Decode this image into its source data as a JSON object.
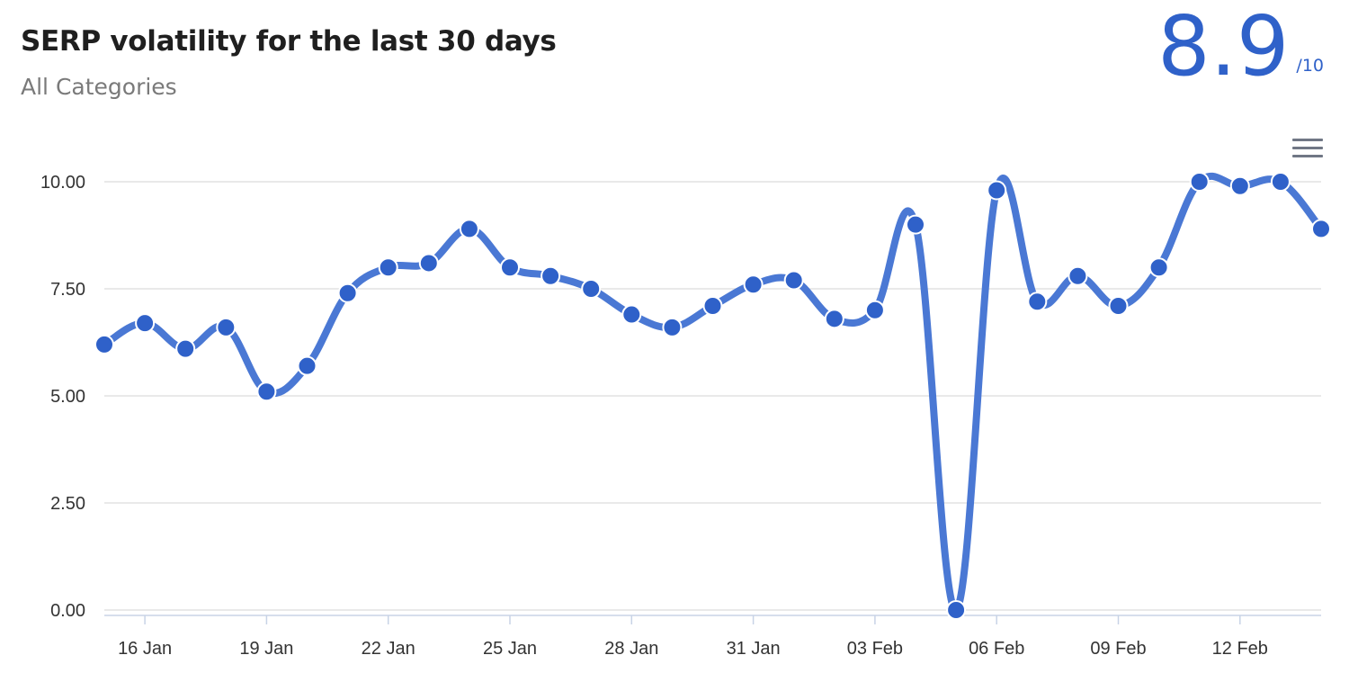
{
  "header": {
    "title": "SERP volatility for the last 30 days",
    "subtitle": "All Categories",
    "score": "8.9",
    "score_max": "/10"
  },
  "toolbar": {
    "menu_icon": "hamburger-menu-icon"
  },
  "colors": {
    "line": "#4a78d4",
    "point": "#2f61c9",
    "grid": "#e2e2e2",
    "axis": "#c8d3e6"
  },
  "chart_data": {
    "type": "line",
    "title": "SERP volatility for the last 30 days",
    "subtitle": "All Categories",
    "xlabel": "",
    "ylabel": "",
    "ylim": [
      0,
      10
    ],
    "grid": true,
    "y_ticks": [
      "0.00",
      "2.50",
      "5.00",
      "7.50",
      "10.00"
    ],
    "x_ticks": [
      {
        "date": "2024-01-16",
        "label": "16 Jan"
      },
      {
        "date": "2024-01-19",
        "label": "19 Jan"
      },
      {
        "date": "2024-01-22",
        "label": "22 Jan"
      },
      {
        "date": "2024-01-25",
        "label": "25 Jan"
      },
      {
        "date": "2024-01-28",
        "label": "28 Jan"
      },
      {
        "date": "2024-01-31",
        "label": "31 Jan"
      },
      {
        "date": "2024-02-03",
        "label": "03 Feb"
      },
      {
        "date": "2024-02-06",
        "label": "06 Feb"
      },
      {
        "date": "2024-02-09",
        "label": "09 Feb"
      },
      {
        "date": "2024-02-12",
        "label": "12 Feb"
      }
    ],
    "x": [
      "2024-01-15",
      "2024-01-16",
      "2024-01-17",
      "2024-01-18",
      "2024-01-19",
      "2024-01-20",
      "2024-01-21",
      "2024-01-22",
      "2024-01-23",
      "2024-01-24",
      "2024-01-25",
      "2024-01-26",
      "2024-01-27",
      "2024-01-28",
      "2024-01-29",
      "2024-01-30",
      "2024-01-31",
      "2024-02-01",
      "2024-02-02",
      "2024-02-03",
      "2024-02-04",
      "2024-02-05",
      "2024-02-06",
      "2024-02-07",
      "2024-02-08",
      "2024-02-09",
      "2024-02-10",
      "2024-02-11",
      "2024-02-12",
      "2024-02-13",
      "2024-02-14"
    ],
    "series": [
      {
        "values": [
          6.2,
          6.7,
          6.1,
          6.6,
          5.1,
          5.7,
          7.4,
          8.0,
          8.1,
          8.9,
          8.0,
          7.8,
          7.5,
          6.9,
          6.6,
          7.1,
          7.6,
          7.7,
          6.8,
          7.0,
          9.0,
          0.0,
          9.8,
          7.2,
          7.8,
          7.1,
          8.0,
          10.0,
          9.9,
          10.0,
          8.9
        ]
      }
    ]
  }
}
